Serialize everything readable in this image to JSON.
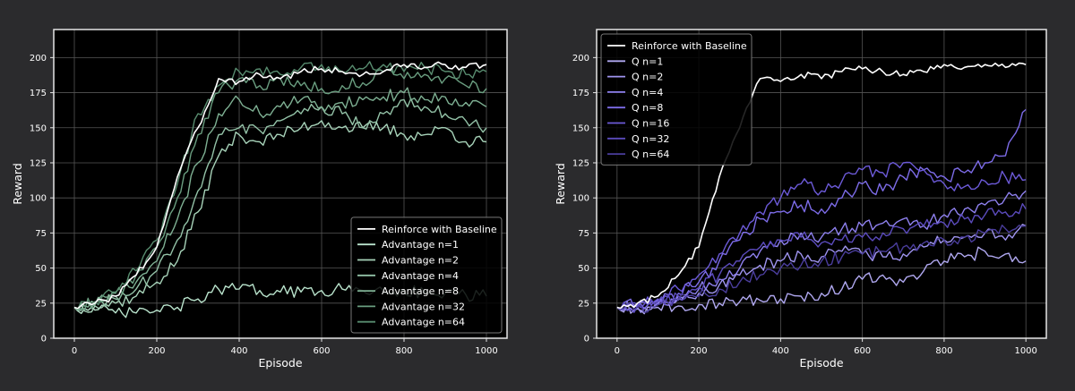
{
  "colors": {
    "background": "#2b2b2d",
    "plot_bg": "#000000",
    "frame": "#e6e6e6",
    "grid": "#555555",
    "text": "#ffffff",
    "baseline": "#ffffff"
  },
  "chart_data": [
    {
      "type": "line",
      "xlabel": "Episode",
      "ylabel": "Reward",
      "xlim": [
        -50,
        1050
      ],
      "ylim": [
        0,
        220
      ],
      "xticks": [
        0,
        200,
        400,
        600,
        800,
        1000
      ],
      "yticks": [
        0,
        25,
        50,
        75,
        100,
        125,
        150,
        175,
        200
      ],
      "grid": true,
      "legend_position": "bottom-right",
      "x": [
        0,
        50,
        100,
        150,
        200,
        250,
        300,
        350,
        400,
        450,
        500,
        550,
        600,
        650,
        700,
        750,
        800,
        850,
        900,
        950,
        1000
      ],
      "series": [
        {
          "name": "Reinforce with Baseline",
          "color": "#ffffff",
          "values": [
            22,
            25,
            30,
            45,
            65,
            115,
            150,
            185,
            183,
            188,
            185,
            190,
            192,
            190,
            188,
            190,
            195,
            193,
            195,
            193,
            195
          ]
        },
        {
          "name": "Advantage n=1",
          "color": "#b9e3cc",
          "values": [
            22,
            20,
            18,
            18,
            20,
            22,
            28,
            35,
            35,
            34,
            33,
            33,
            34,
            35,
            34,
            34,
            34,
            33,
            32,
            31,
            30
          ]
        },
        {
          "name": "Advantage n=2",
          "color": "#a7d3b9",
          "values": [
            22,
            23,
            25,
            30,
            40,
            55,
            90,
            130,
            145,
            140,
            145,
            150,
            155,
            150,
            150,
            150,
            145,
            145,
            150,
            140,
            140
          ]
        },
        {
          "name": "Advantage n=4",
          "color": "#93c2a7",
          "values": [
            22,
            24,
            28,
            35,
            48,
            70,
            105,
            145,
            150,
            148,
            155,
            160,
            165,
            160,
            150,
            160,
            170,
            165,
            160,
            155,
            150
          ]
        },
        {
          "name": "Advantage n=8",
          "color": "#7eb093",
          "values": [
            22,
            25,
            30,
            40,
            55,
            85,
            125,
            160,
            170,
            160,
            165,
            170,
            165,
            168,
            170,
            172,
            175,
            170,
            172,
            168,
            165
          ]
        },
        {
          "name": "Advantage n=32",
          "color": "#6a9e80",
          "values": [
            22,
            26,
            32,
            45,
            65,
            100,
            145,
            175,
            185,
            180,
            185,
            180,
            178,
            180,
            182,
            190,
            185,
            188,
            185,
            180,
            178
          ]
        },
        {
          "name": "Advantage n=64",
          "color": "#588c6f",
          "values": [
            22,
            26,
            33,
            48,
            70,
            110,
            160,
            180,
            190,
            192,
            188,
            193,
            195,
            190,
            192,
            195,
            190,
            193,
            190,
            188,
            190
          ]
        }
      ]
    },
    {
      "type": "line",
      "xlabel": "Episode",
      "ylabel": "Reward",
      "xlim": [
        -50,
        1050
      ],
      "ylim": [
        0,
        220
      ],
      "xticks": [
        0,
        200,
        400,
        600,
        800,
        1000
      ],
      "yticks": [
        0,
        25,
        50,
        75,
        100,
        125,
        150,
        175,
        200
      ],
      "grid": true,
      "legend_position": "top-left",
      "x": [
        0,
        50,
        100,
        150,
        200,
        250,
        300,
        350,
        400,
        450,
        500,
        550,
        600,
        650,
        700,
        750,
        800,
        850,
        900,
        950,
        1000
      ],
      "series": [
        {
          "name": "Reinforce with Baseline",
          "color": "#ffffff",
          "values": [
            22,
            25,
            30,
            45,
            65,
            115,
            150,
            185,
            183,
            188,
            185,
            190,
            192,
            190,
            188,
            190,
            195,
            193,
            195,
            193,
            195
          ]
        },
        {
          "name": "Q n=1",
          "color": "#b0a8f0",
          "values": [
            22,
            21,
            22,
            23,
            24,
            25,
            26,
            27,
            28,
            30,
            32,
            35,
            42,
            45,
            40,
            48,
            55,
            58,
            62,
            60,
            55
          ]
        },
        {
          "name": "Q n=2",
          "color": "#9f94ef",
          "values": [
            22,
            22,
            24,
            28,
            32,
            38,
            45,
            52,
            55,
            60,
            58,
            62,
            60,
            58,
            60,
            65,
            70,
            72,
            75,
            70,
            80
          ]
        },
        {
          "name": "Q n=4",
          "color": "#8e80ee",
          "values": [
            22,
            23,
            25,
            30,
            35,
            42,
            50,
            62,
            70,
            75,
            72,
            78,
            80,
            82,
            85,
            80,
            88,
            92,
            95,
            100,
            105
          ]
        },
        {
          "name": "Q n=8",
          "color": "#7d6ce8",
          "values": [
            22,
            24,
            27,
            32,
            40,
            55,
            70,
            85,
            90,
            95,
            92,
            100,
            110,
            105,
            115,
            120,
            115,
            118,
            125,
            130,
            163
          ]
        },
        {
          "name": "Q n=16",
          "color": "#6c5ad8",
          "values": [
            22,
            24,
            28,
            35,
            45,
            60,
            75,
            90,
            100,
            110,
            105,
            112,
            120,
            118,
            125,
            120,
            110,
            108,
            112,
            115,
            113
          ]
        },
        {
          "name": "Q n=32",
          "color": "#5b4bbd",
          "values": [
            22,
            23,
            26,
            30,
            36,
            45,
            55,
            65,
            70,
            72,
            68,
            70,
            72,
            75,
            78,
            80,
            82,
            85,
            88,
            90,
            92
          ]
        },
        {
          "name": "Q n=64",
          "color": "#4a3d9c",
          "values": [
            22,
            22,
            24,
            27,
            30,
            35,
            40,
            45,
            50,
            52,
            55,
            58,
            60,
            62,
            65,
            68,
            70,
            72,
            75,
            78,
            80
          ]
        }
      ]
    }
  ]
}
